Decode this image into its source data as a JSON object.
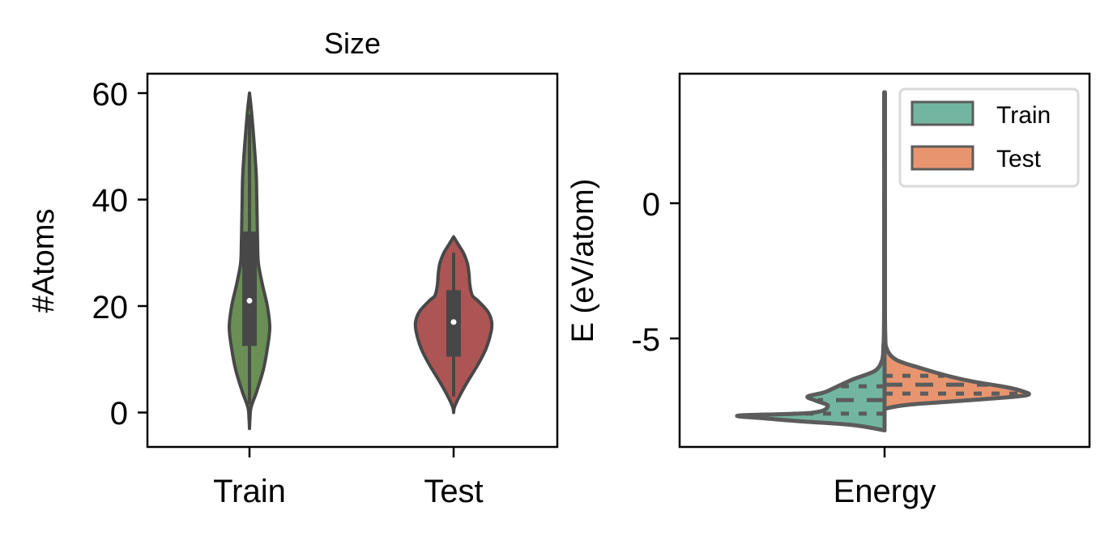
{
  "chart_data": [
    {
      "type": "violin",
      "title": "Size",
      "xlabel": "",
      "ylabel": "#Atoms",
      "ylim": [
        -6.5,
        63.5
      ],
      "yticks": [
        0,
        20,
        40,
        60
      ],
      "ytick_labels": [
        "0",
        "20",
        "40",
        "60"
      ],
      "categories": [
        "Train",
        "Test"
      ],
      "grid": false,
      "series": [
        {
          "name": "Train",
          "color": "#6a8f55",
          "min": 1.5,
          "q1": 12.5,
          "median": 21,
          "q3": 34,
          "max": 56,
          "kde_extent": [
            -3,
            60
          ],
          "density_profile": [
            [
              -3,
              0
            ],
            [
              -1,
              0.6
            ],
            [
              1,
              2
            ],
            [
              4,
              9
            ],
            [
              8,
              17
            ],
            [
              12,
              22
            ],
            [
              16,
              25
            ],
            [
              20,
              22
            ],
            [
              24,
              16
            ],
            [
              28,
              11
            ],
            [
              32,
              10
            ],
            [
              36,
              9.5
            ],
            [
              40,
              9
            ],
            [
              44,
              8.5
            ],
            [
              48,
              7
            ],
            [
              52,
              5
            ],
            [
              56,
              2.8
            ],
            [
              58,
              1.5
            ],
            [
              60,
              0
            ]
          ]
        },
        {
          "name": "Test",
          "color": "#ad5454",
          "min": 3,
          "q1": 10.5,
          "median": 17,
          "q3": 23,
          "max": 30,
          "kde_extent": [
            0,
            33
          ],
          "density_profile": [
            [
              0,
              0
            ],
            [
              1,
              1
            ],
            [
              3,
              7
            ],
            [
              6,
              18
            ],
            [
              9,
              30
            ],
            [
              12,
              40
            ],
            [
              15,
              46
            ],
            [
              17,
              47
            ],
            [
              19,
              42
            ],
            [
              21,
              30
            ],
            [
              22,
              23
            ],
            [
              24,
              20
            ],
            [
              26,
              19
            ],
            [
              28,
              17
            ],
            [
              30,
              12
            ],
            [
              31.5,
              6
            ],
            [
              33,
              0
            ]
          ]
        }
      ]
    },
    {
      "type": "violin",
      "subtype": "split",
      "title": "",
      "xlabel": "Energy",
      "ylabel": "E (eV/atom)",
      "ylim": [
        -9,
        4.8
      ],
      "yticks": [
        0,
        -5
      ],
      "ytick_labels": [
        "0",
        "-5"
      ],
      "categories": [
        "Energy"
      ],
      "inner": "quartile",
      "grid": false,
      "legend": {
        "position": "upper right",
        "entries": [
          "Train",
          "Test"
        ]
      },
      "series": [
        {
          "name": "Train",
          "color": "#72b6a1",
          "side": "left",
          "q1": -7.78,
          "median": -7.28,
          "q3": -6.77,
          "kde_extent": [
            -8.4,
            4.1
          ],
          "density_profile": [
            [
              -8.4,
              0
            ],
            [
              -8.2,
              40
            ],
            [
              -8.05,
              110
            ],
            [
              -7.95,
              150
            ],
            [
              -7.85,
              180
            ],
            [
              -7.75,
              90
            ],
            [
              -7.5,
              70
            ],
            [
              -7.3,
              85
            ],
            [
              -7.15,
              95
            ],
            [
              -7.0,
              75
            ],
            [
              -6.8,
              60
            ],
            [
              -6.5,
              38
            ],
            [
              -6.2,
              12
            ],
            [
              -5.8,
              3
            ],
            [
              -5.3,
              1.5
            ],
            [
              -4.8,
              0.8
            ],
            [
              -3,
              0.5
            ],
            [
              4.1,
              0.5
            ]
          ]
        },
        {
          "name": "Test",
          "color": "#e8956f",
          "side": "right",
          "q1": -7.04,
          "median": -6.71,
          "q3": -6.38,
          "kde_extent": [
            -7.6,
            4.1
          ],
          "density_profile": [
            [
              -7.6,
              0
            ],
            [
              -7.45,
              30
            ],
            [
              -7.25,
              120
            ],
            [
              -7.1,
              175
            ],
            [
              -6.95,
              170
            ],
            [
              -6.8,
              150
            ],
            [
              -6.6,
              110
            ],
            [
              -6.4,
              80
            ],
            [
              -6.1,
              45
            ],
            [
              -5.8,
              15
            ],
            [
              -5.4,
              3
            ],
            [
              -4.8,
              0.8
            ],
            [
              -3,
              0.5
            ],
            [
              4.1,
              0.5
            ]
          ]
        }
      ]
    }
  ],
  "panels": {
    "left": {
      "title": "Size",
      "ylabel": "#Atoms",
      "xticks": [
        "Train",
        "Test"
      ],
      "yticks": [
        "60",
        "40",
        "20",
        "0"
      ]
    },
    "right": {
      "ylabel": "E (eV/atom)",
      "xticks": [
        "Energy"
      ],
      "yticks": [
        "0",
        "-5"
      ],
      "legend": [
        {
          "label": "Train",
          "color": "#72b6a1"
        },
        {
          "label": "Test",
          "color": "#e8956f"
        }
      ]
    }
  },
  "colors": {
    "outline": "#474747",
    "split_outline": "#5c5c5c",
    "legend_border": "#d9d9d9"
  }
}
